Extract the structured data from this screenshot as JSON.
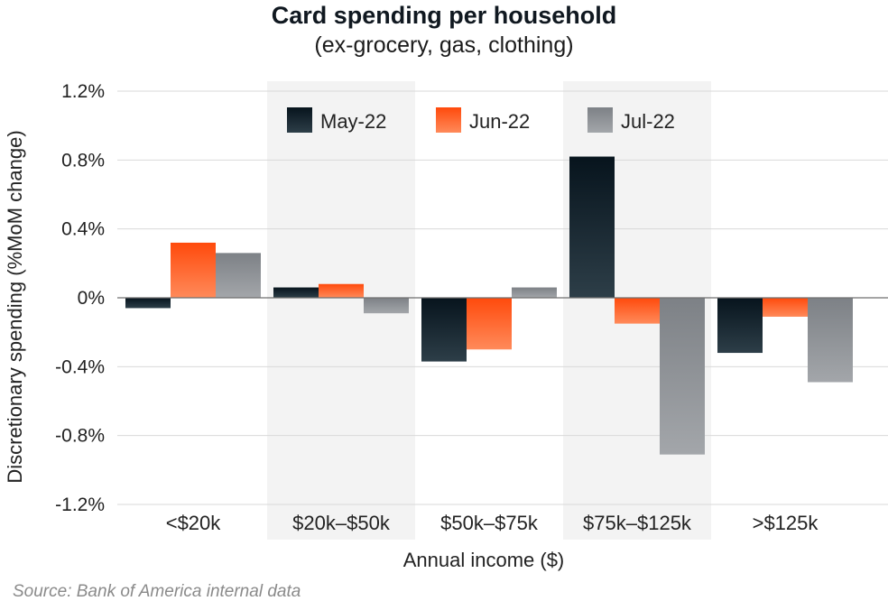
{
  "chart_data": {
    "type": "bar",
    "title": "Card spending per household",
    "subtitle": "(ex-grocery, gas, clothing)",
    "xlabel": "Annual income ($)",
    "ylabel": "Discretionary spending (%MoM change)",
    "categories": [
      "<$20k",
      "$20k–$50k",
      "$50k–$75k",
      "$75k–$125k",
      ">$125k"
    ],
    "series": [
      {
        "name": "May-22",
        "values": [
          -0.06,
          0.06,
          -0.37,
          0.82,
          -0.32
        ]
      },
      {
        "name": "Jun-22",
        "values": [
          0.32,
          0.08,
          -0.3,
          -0.15,
          -0.11
        ]
      },
      {
        "name": "Jul-22",
        "values": [
          0.26,
          -0.09,
          0.06,
          -0.91,
          -0.49
        ]
      }
    ],
    "ylim": [
      -1.2,
      1.2
    ],
    "yticks": [
      1.2,
      0.8,
      0.4,
      0,
      -0.4,
      -0.8,
      -1.2
    ],
    "ytick_labels": [
      "1.2%",
      "0.8%",
      "0.4%",
      "0%",
      "-0.4%",
      "-0.8%",
      "-1.2%"
    ],
    "shaded_categories": [
      1,
      3
    ],
    "grid": true,
    "legend_placement": "top-center",
    "colors": {
      "series": [
        "#0d1f2b",
        "#ff5a1f",
        "#8c8f94"
      ],
      "band": "#f3f3f3",
      "grid": "#d9d9d9"
    },
    "source": "Source: Bank of America internal data"
  }
}
